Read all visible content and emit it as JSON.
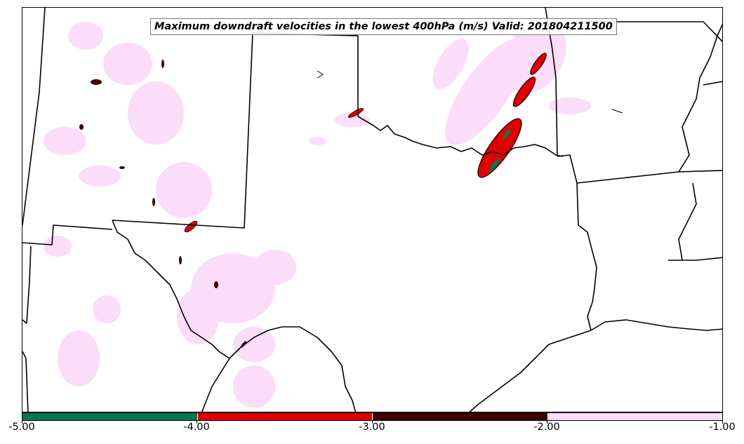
{
  "title": "Maximum downdraft velocities in the lowest 400hPa (m/s) Valid: 201804211500",
  "colorbar": {
    "ticks": [
      "-5.00",
      "-4.00",
      "-3.00",
      "-2.00",
      "-1.00"
    ],
    "bins": [
      {
        "min": -5,
        "max": -4,
        "color": "#007a4d"
      },
      {
        "min": -4,
        "max": -3,
        "color": "#e10000"
      },
      {
        "min": -3,
        "max": -2,
        "color": "#3c0000"
      },
      {
        "min": -2,
        "max": -1,
        "color": "#fbdcf9"
      }
    ]
  },
  "colors": {
    "weak": "#fbdcf9",
    "moderate": "#3c0000",
    "strong": "#e10000",
    "extreme": "#007a4d",
    "boundaries": "#000000"
  }
}
